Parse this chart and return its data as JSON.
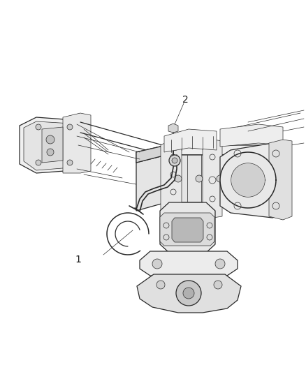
{
  "background_color": "#ffffff",
  "line_color": "#2a2a2a",
  "label_color": "#1a1a1a",
  "callout_1_label": "1",
  "callout_2_label": "2",
  "figsize": [
    4.38,
    5.33
  ],
  "dpi": 100,
  "lw_main": 0.9,
  "lw_thin": 0.5,
  "lw_heavy": 1.3
}
